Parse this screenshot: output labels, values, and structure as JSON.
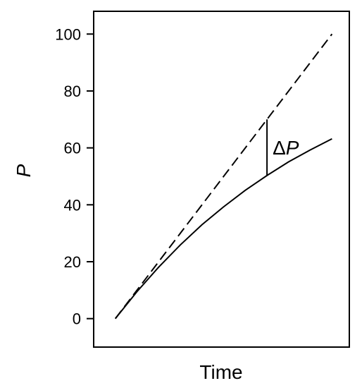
{
  "chart_data": {
    "type": "line",
    "xlabel": "Time",
    "ylabel": "P",
    "ylim": [
      -10,
      108
    ],
    "xlim": [
      -0.1,
      1.08
    ],
    "yticks": [
      0,
      20,
      40,
      60,
      80,
      100
    ],
    "ytick_labels": [
      "0",
      "20",
      "40",
      "60",
      "80",
      "100"
    ],
    "grid": false,
    "legend": "none",
    "series": [
      {
        "style": "dashed",
        "x": [
          0,
          1
        ],
        "y": [
          0,
          100
        ]
      },
      {
        "style": "solid",
        "x": [
          0,
          0.1,
          0.2,
          0.3,
          0.4,
          0.5,
          0.6,
          0.7,
          0.8,
          0.9,
          1.0
        ],
        "y": [
          0,
          9.5,
          18.1,
          25.9,
          33.0,
          39.3,
          45.1,
          50.3,
          55.1,
          59.3,
          63.2
        ]
      }
    ],
    "annotation": {
      "label": "ΔP",
      "x": 0.7,
      "y_from": 50.3,
      "y_to": 70
    }
  }
}
